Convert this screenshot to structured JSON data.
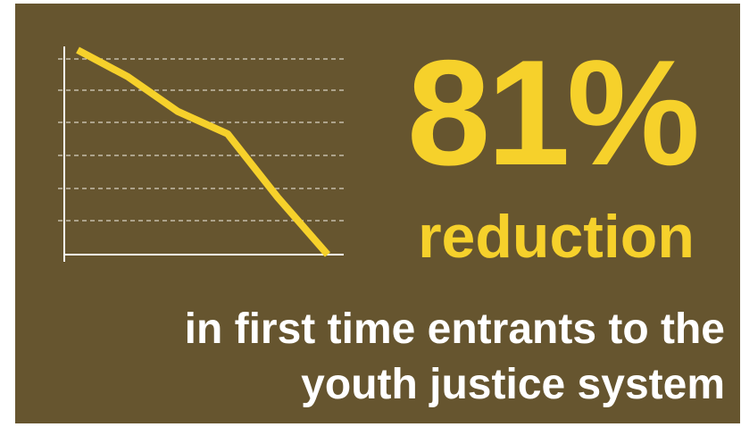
{
  "chart_data": {
    "type": "line",
    "title": "",
    "xlabel": "",
    "ylabel": "",
    "grid": true,
    "x": [
      0,
      1,
      2,
      3,
      4,
      5
    ],
    "series": [
      {
        "values": [
          100,
          87,
          70,
          59,
          28,
          0
        ]
      }
    ],
    "ylim": [
      0,
      100
    ],
    "colors": {
      "line": "#f6d12b",
      "axis": "#ffffff",
      "grid": "#d8d2c2"
    }
  },
  "headline": {
    "value": "81%",
    "label": "reduction"
  },
  "caption": {
    "line1": "in first time entrants to the",
    "line2": "youth justice system"
  },
  "colors": {
    "background": "#66552f",
    "accent": "#f6d12b",
    "text": "#ffffff"
  }
}
